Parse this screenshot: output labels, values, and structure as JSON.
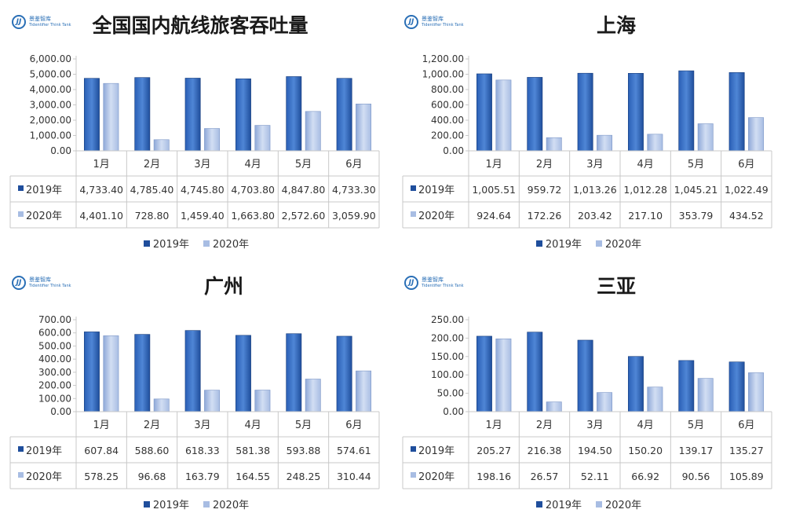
{
  "colors": {
    "y2019": "#1f4e9c",
    "y2020": "#a8bde3",
    "axis": "#c8c8c8",
    "text": "#333333"
  },
  "logo": {
    "cn": "景鉴智库",
    "en": "Tidentifier Think Tank",
    "mark": "JJ"
  },
  "legend": {
    "y2019": "2019年",
    "y2020": "2020年"
  },
  "chart_data": [
    {
      "type": "bar",
      "title": "全国国内航线旅客吞吐量",
      "categories": [
        "1月",
        "2月",
        "3月",
        "4月",
        "5月",
        "6月"
      ],
      "ylim": [
        0,
        6000
      ],
      "yticks": [
        "0.00",
        "1,000.00",
        "2,000.00",
        "3,000.00",
        "4,000.00",
        "5,000.00",
        "6,000.00"
      ],
      "series": [
        {
          "name": "2019年",
          "values": [
            4733.4,
            4785.4,
            4745.8,
            4703.8,
            4847.8,
            4733.3
          ],
          "labels": [
            "4,733.40",
            "4,785.40",
            "4,745.80",
            "4,703.80",
            "4,847.80",
            "4,733.30"
          ]
        },
        {
          "name": "2020年",
          "values": [
            4401.1,
            728.8,
            1459.4,
            1663.8,
            2572.6,
            3059.9
          ],
          "labels": [
            "4,401.10",
            "728.80",
            "1,459.40",
            "1,663.80",
            "2,572.60",
            "3,059.90"
          ]
        }
      ],
      "legend": "bottom"
    },
    {
      "type": "bar",
      "title": "上海",
      "categories": [
        "1月",
        "2月",
        "3月",
        "4月",
        "5月",
        "6月"
      ],
      "ylim": [
        0,
        1200
      ],
      "yticks": [
        "0.00",
        "200.00",
        "400.00",
        "600.00",
        "800.00",
        "1,000.00",
        "1,200.00"
      ],
      "series": [
        {
          "name": "2019年",
          "values": [
            1005.51,
            959.72,
            1013.26,
            1012.28,
            1045.21,
            1022.49
          ],
          "labels": [
            "1,005.51",
            "959.72",
            "1,013.26",
            "1,012.28",
            "1,045.21",
            "1,022.49"
          ]
        },
        {
          "name": "2020年",
          "values": [
            924.64,
            172.26,
            203.42,
            217.1,
            353.79,
            434.52
          ],
          "labels": [
            "924.64",
            "172.26",
            "203.42",
            "217.10",
            "353.79",
            "434.52"
          ]
        }
      ],
      "legend": "bottom"
    },
    {
      "type": "bar",
      "title": "广州",
      "categories": [
        "1月",
        "2月",
        "3月",
        "4月",
        "5月",
        "6月"
      ],
      "ylim": [
        0,
        700
      ],
      "yticks": [
        "0.00",
        "100.00",
        "200.00",
        "300.00",
        "400.00",
        "500.00",
        "600.00",
        "700.00"
      ],
      "series": [
        {
          "name": "2019年",
          "values": [
            607.84,
            588.6,
            618.33,
            581.38,
            593.88,
            574.61
          ],
          "labels": [
            "607.84",
            "588.60",
            "618.33",
            "581.38",
            "593.88",
            "574.61"
          ]
        },
        {
          "name": "2020年",
          "values": [
            578.25,
            96.68,
            163.79,
            164.55,
            248.25,
            310.44
          ],
          "labels": [
            "578.25",
            "96.68",
            "163.79",
            "164.55",
            "248.25",
            "310.44"
          ]
        }
      ],
      "legend": "bottom"
    },
    {
      "type": "bar",
      "title": "三亚",
      "categories": [
        "1月",
        "2月",
        "3月",
        "4月",
        "5月",
        "6月"
      ],
      "ylim": [
        0,
        250
      ],
      "yticks": [
        "0.00",
        "50.00",
        "100.00",
        "150.00",
        "200.00",
        "250.00"
      ],
      "series": [
        {
          "name": "2019年",
          "values": [
            205.27,
            216.38,
            194.5,
            150.2,
            139.17,
            135.27
          ],
          "labels": [
            "205.27",
            "216.38",
            "194.50",
            "150.20",
            "139.17",
            "135.27"
          ]
        },
        {
          "name": "2020年",
          "values": [
            198.16,
            26.57,
            52.11,
            66.92,
            90.56,
            105.89
          ],
          "labels": [
            "198.16",
            "26.57",
            "52.11",
            "66.92",
            "90.56",
            "105.89"
          ]
        }
      ],
      "legend": "bottom"
    }
  ]
}
